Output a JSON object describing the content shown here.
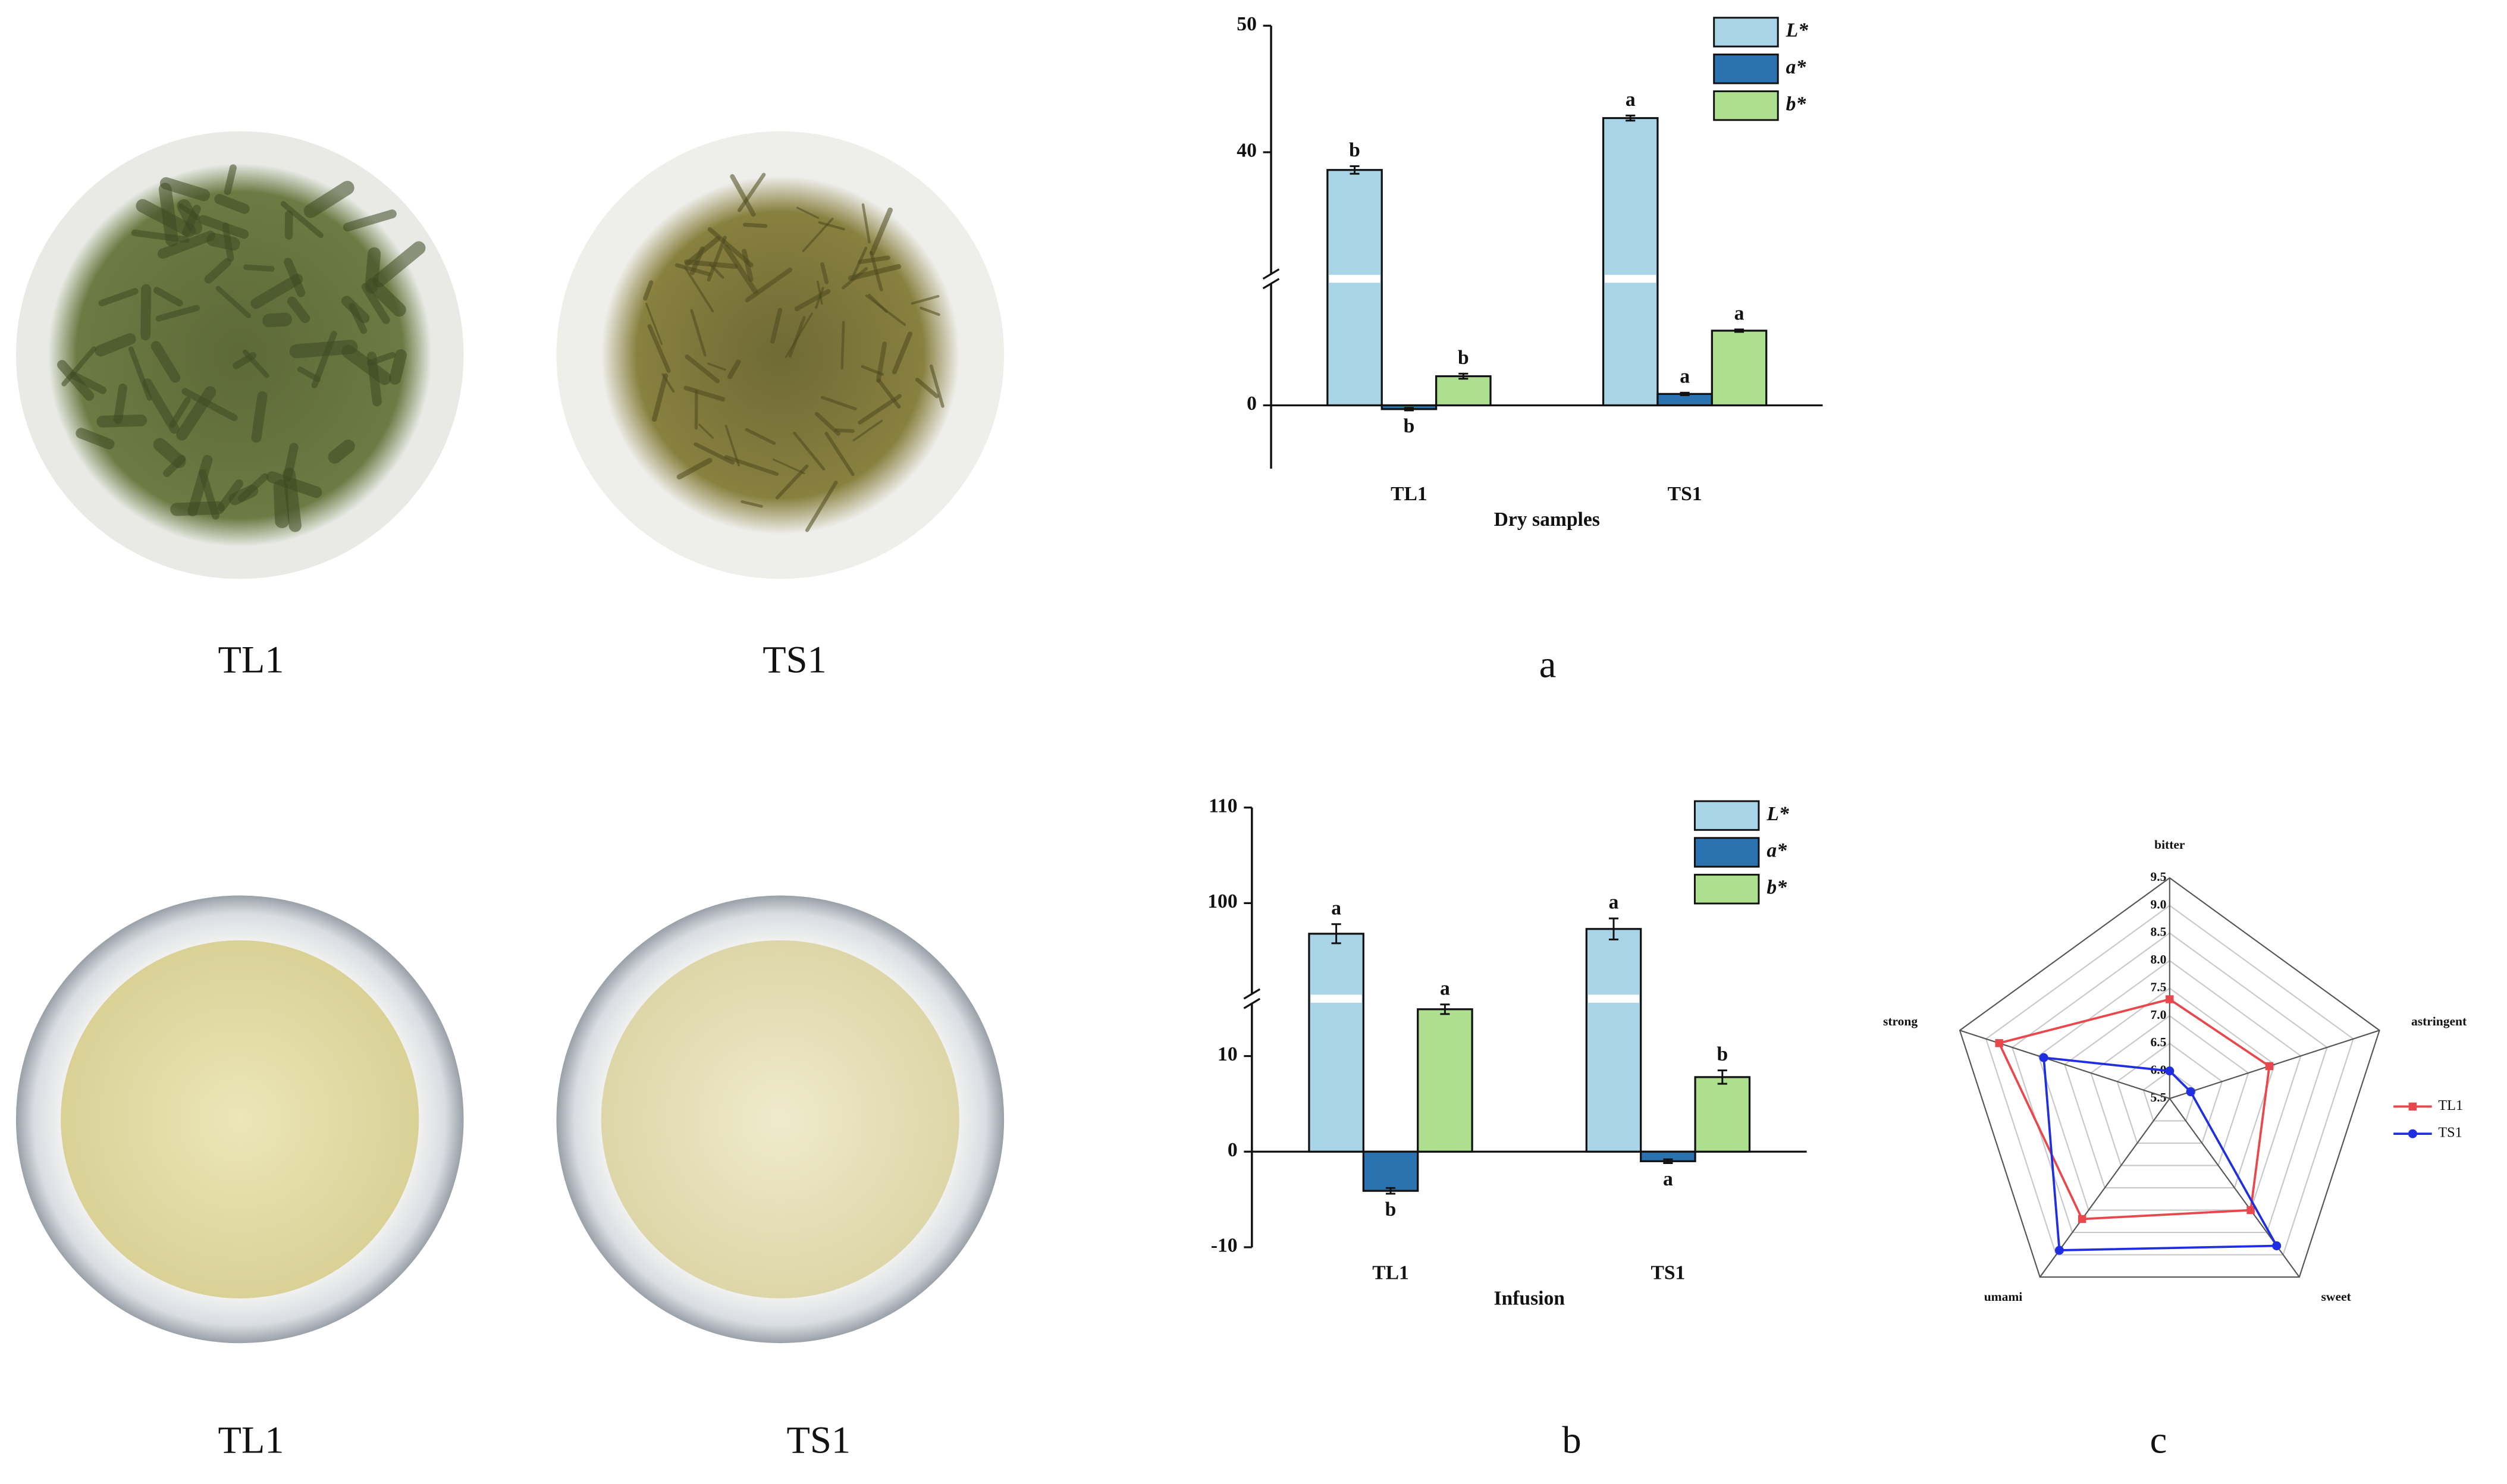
{
  "photos": {
    "dry": [
      "TL1",
      "TS1"
    ],
    "infusion": [
      "TL1",
      "TS1"
    ]
  },
  "panel_labels": [
    "a",
    "b",
    "c"
  ],
  "chart_data": [
    {
      "type": "bar",
      "x_label": "Dry samples",
      "categories": [
        "TL1",
        "TS1"
      ],
      "series": [
        {
          "name": "L*",
          "color": "#a9d3e6",
          "values": [
            38.6,
            42.7
          ],
          "errors": [
            0.3,
            0.2
          ],
          "labels": [
            "b",
            "a"
          ]
        },
        {
          "name": "a*",
          "color": "#2a72b0",
          "values": [
            -0.3,
            0.9
          ],
          "errors": [
            0.1,
            0.1
          ],
          "labels": [
            "b",
            "a"
          ]
        },
        {
          "name": "b*",
          "color": "#addf8f",
          "values": [
            2.3,
            5.9
          ],
          "errors": [
            0.2,
            0.1
          ],
          "labels": [
            "b",
            "a"
          ]
        }
      ],
      "ylim": [
        -5,
        50
      ],
      "ybreak": [
        10,
        30
      ],
      "yticks": [
        0,
        40,
        50
      ]
    },
    {
      "type": "bar",
      "x_label": "Infusion",
      "categories": [
        "TL1",
        "TS1"
      ],
      "series": [
        {
          "name": "L*",
          "color": "#a9d3e6",
          "values": [
            96.8,
            97.3
          ],
          "errors": [
            1.0,
            1.1
          ],
          "labels": [
            "a",
            "a"
          ]
        },
        {
          "name": "a*",
          "color": "#2a72b0",
          "values": [
            -4.1,
            -1.0
          ],
          "errors": [
            0.3,
            0.2
          ],
          "labels": [
            "b",
            "a"
          ]
        },
        {
          "name": "b*",
          "color": "#addf8f",
          "values": [
            14.9,
            7.8
          ],
          "errors": [
            0.5,
            0.7
          ],
          "labels": [
            "a",
            "b"
          ]
        }
      ],
      "ylim": [
        -10,
        110
      ],
      "ybreak": [
        16,
        90
      ],
      "yticks": [
        -10,
        0,
        10,
        100,
        110
      ]
    },
    {
      "type": "radar",
      "categories": [
        "bitter",
        "astringent",
        "sweet",
        "umami",
        "strong"
      ],
      "rlim": [
        5.5,
        9.5
      ],
      "rticks": [
        5.5,
        {
          "value": 6,
          "label": "6.0"
        },
        6.5,
        {
          "value": 7,
          "label": "7.0"
        },
        7.5,
        {
          "value": 8,
          "label": "8.0"
        },
        8.5,
        {
          "value": 9,
          "label": "9.0"
        },
        9.5
      ],
      "series": [
        {
          "name": "TL1",
          "color": "#e8474b",
          "marker": "square",
          "values": [
            7.3,
            7.4,
            8.0,
            8.2,
            8.75
          ]
        },
        {
          "name": "TS1",
          "color": "#1f2ee0",
          "marker": "circle",
          "values": [
            6.0,
            5.9,
            8.8,
            8.9,
            7.9
          ]
        }
      ]
    }
  ]
}
